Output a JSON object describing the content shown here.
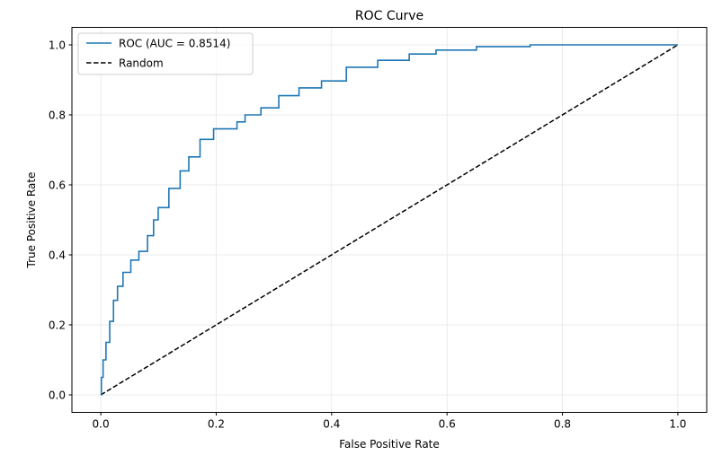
{
  "chart_data": {
    "type": "line",
    "title": "ROC Curve",
    "xlabel": "False Positive Rate",
    "ylabel": "True Positive Rate",
    "xlim": [
      -0.05,
      1.05
    ],
    "ylim": [
      -0.05,
      1.05
    ],
    "xticks": [
      "0.0",
      "0.2",
      "0.4",
      "0.6",
      "0.8",
      "1.0"
    ],
    "yticks": [
      "0.0",
      "0.2",
      "0.4",
      "0.6",
      "0.8",
      "1.0"
    ],
    "grid": true,
    "legend_position": "top-left",
    "series": [
      {
        "name": "ROC (AUC = 0.8514)",
        "color": "#1f77b4",
        "style": "solid-steps",
        "x": [
          0,
          0.002,
          0.006,
          0.012,
          0.019,
          0.025,
          0.033,
          0.044,
          0.06,
          0.072,
          0.09,
          0.093,
          0.106,
          0.13,
          0.145,
          0.16,
          0.184,
          0.207,
          0.234,
          0.238,
          0.262,
          0.293,
          0.324,
          0.363,
          0.402,
          0.449,
          0.511,
          0.558,
          0.604,
          0.698,
          0.79,
          1.0
        ],
        "y": [
          0,
          0.05,
          0.1,
          0.15,
          0.21,
          0.27,
          0.31,
          0.35,
          0.385,
          0.41,
          0.455,
          0.5,
          0.535,
          0.59,
          0.64,
          0.68,
          0.73,
          0.76,
          0.76,
          0.78,
          0.8,
          0.82,
          0.855,
          0.877,
          0.897,
          0.936,
          0.956,
          0.974,
          0.985,
          0.995,
          1.0,
          1.0
        ]
      },
      {
        "name": "Random",
        "color": "#000000",
        "style": "dashed",
        "x": [
          0,
          1
        ],
        "y": [
          0,
          1
        ]
      }
    ]
  }
}
